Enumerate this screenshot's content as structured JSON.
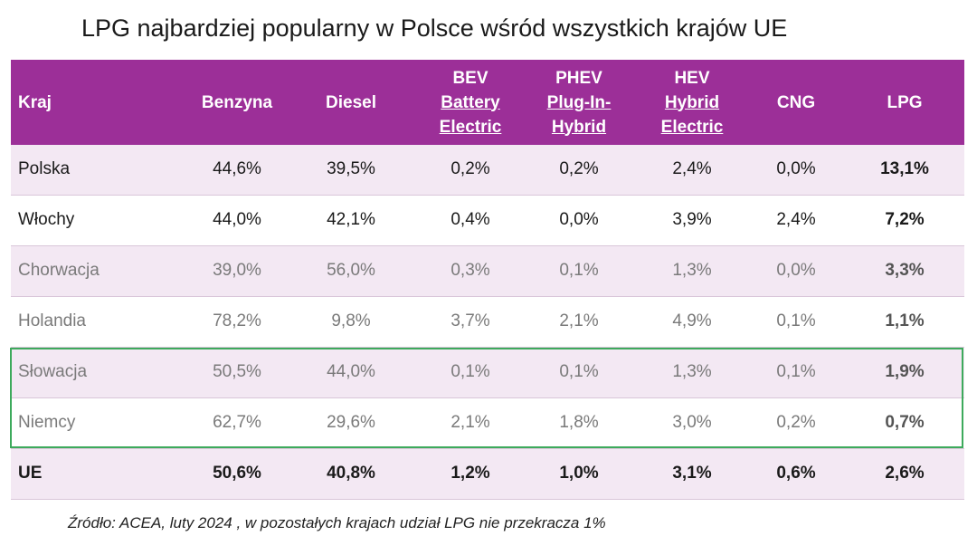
{
  "title": "LPG najbardziej popularny w Polsce wśród wszystkich krajów UE",
  "table": {
    "header": [
      [
        "Kraj"
      ],
      [
        "Benzyna"
      ],
      [
        "Diesel"
      ],
      [
        "BEV",
        "Battery",
        "Electric"
      ],
      [
        "PHEV",
        "Plug-In-",
        "Hybrid"
      ],
      [
        "HEV",
        "Hybrid",
        "Electric"
      ],
      [
        "CNG"
      ],
      [
        "LPG"
      ]
    ],
    "rows": [
      [
        "Polska",
        "44,6%",
        "39,5%",
        "0,2%",
        "0,2%",
        "2,4%",
        "0,0%",
        "13,1%"
      ],
      [
        "Włochy",
        "44,0%",
        "42,1%",
        "0,4%",
        "0,0%",
        "3,9%",
        "2,4%",
        "7,2%"
      ],
      [
        "Chorwacja",
        "39,0%",
        "56,0%",
        "0,3%",
        "0,1%",
        "1,3%",
        "0,0%",
        "3,3%"
      ],
      [
        "Holandia",
        "78,2%",
        "9,8%",
        "3,7%",
        "2,1%",
        "4,9%",
        "0,1%",
        "1,1%"
      ],
      [
        "Słowacja",
        "50,5%",
        "44,0%",
        "0,1%",
        "0,1%",
        "1,3%",
        "0,1%",
        "1,9%"
      ],
      [
        "Niemcy",
        "62,7%",
        "29,6%",
        "2,1%",
        "1,8%",
        "3,0%",
        "0,2%",
        "0,7%"
      ],
      [
        "UE",
        "50,6%",
        "40,8%",
        "1,2%",
        "1,0%",
        "3,1%",
        "0,6%",
        "2,6%"
      ]
    ]
  },
  "footnote": "Źródło: ACEA, luty 2024 , w pozostałych krajach udział LPG nie przekracza 1%"
}
